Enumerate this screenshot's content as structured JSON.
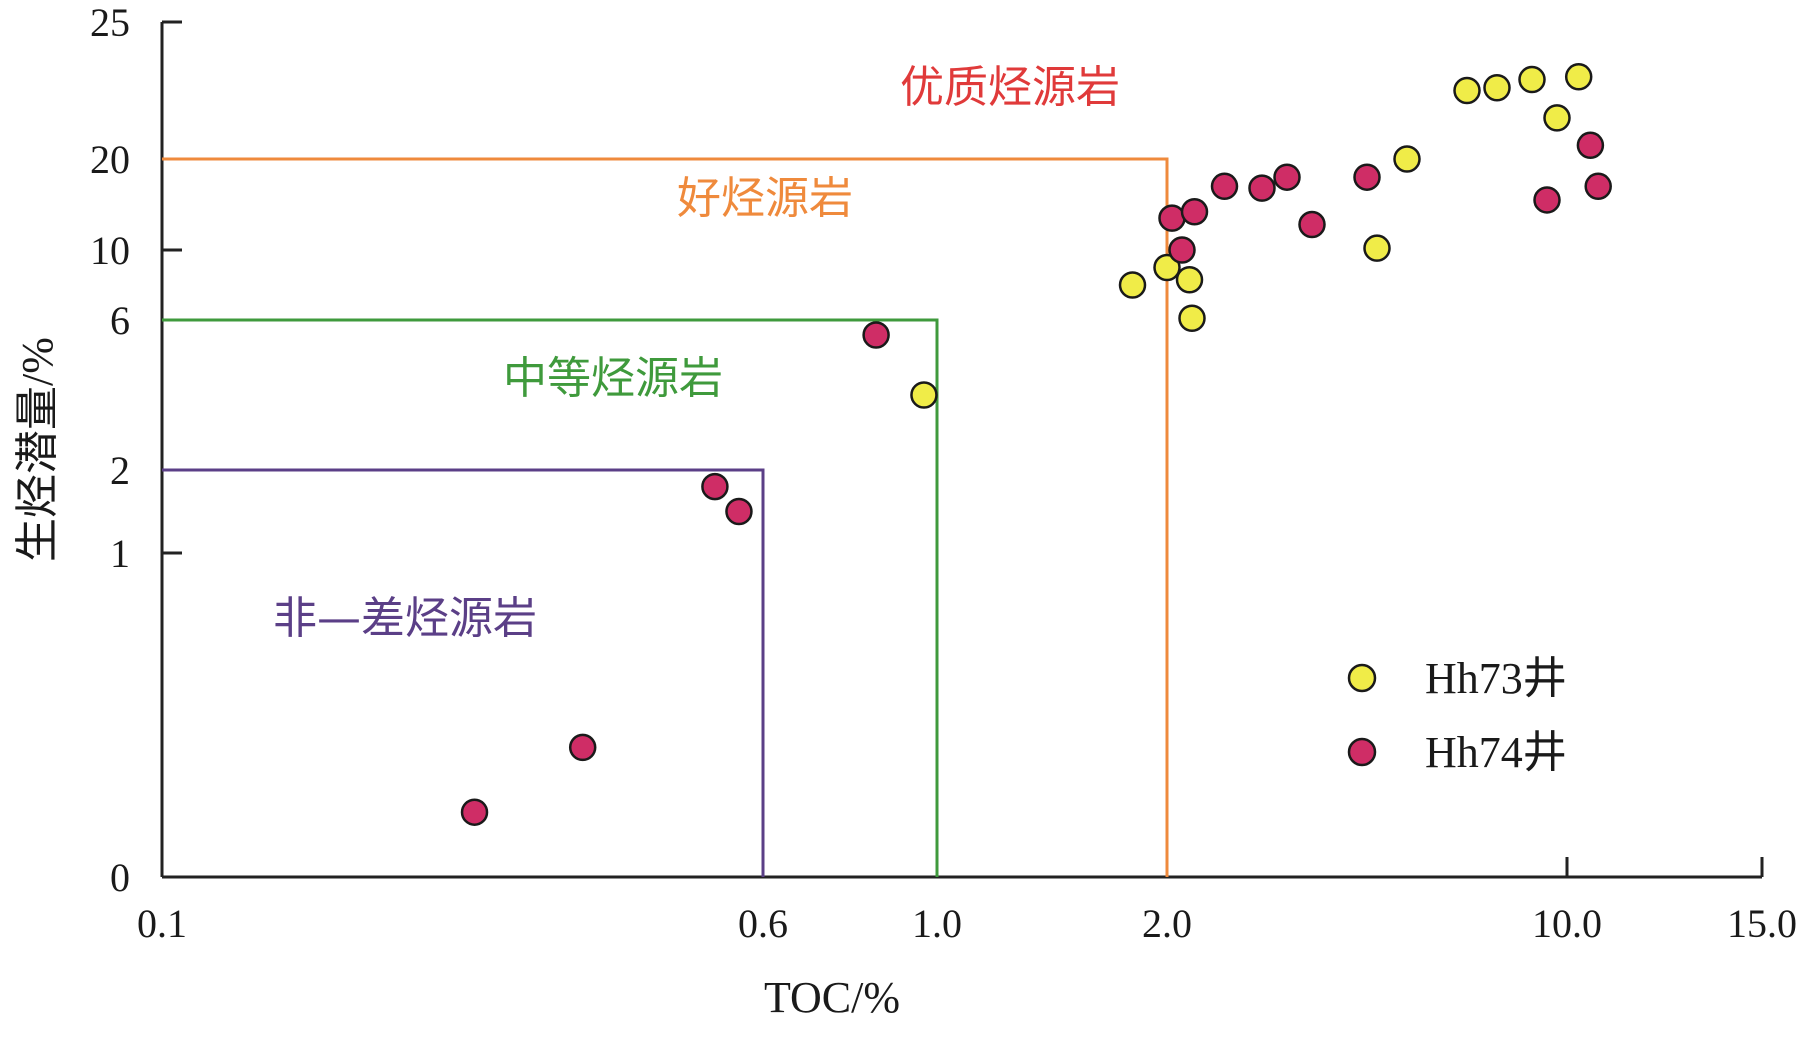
{
  "chart_data": {
    "type": "scatter",
    "xlabel": "TOC/%",
    "ylabel": "生烃潜量/%",
    "x_ticks": [
      "0.1",
      "0.6",
      "1.0",
      "2.0",
      "10.0",
      "15.0"
    ],
    "y_ticks": [
      "0",
      "1",
      "2",
      "6",
      "10",
      "20",
      "25"
    ],
    "xlim": [
      0.1,
      15.0
    ],
    "ylim": [
      0,
      25
    ],
    "legend_position": "bottom-right",
    "regions": [
      {
        "label": "非—差烃源岩",
        "toc_max": 0.6,
        "s_max": 2,
        "color": "#5b3f87"
      },
      {
        "label": "中等烃源岩",
        "toc_max": 1.0,
        "s_max": 6,
        "color": "#3f9a3c"
      },
      {
        "label": "好烃源岩",
        "toc_max": 2.0,
        "s_max": 20,
        "color": "#ef8a3c"
      },
      {
        "label": "优质烃源岩",
        "toc_max": null,
        "s_max": null,
        "color": "#e03a3a"
      }
    ],
    "series": [
      {
        "name": "Hh73井",
        "color": "#f0ec48",
        "points": [
          {
            "x": 0.97,
            "y": 4.0
          },
          {
            "x": 1.85,
            "y": 8.0
          },
          {
            "x": 2.0,
            "y": 9.0
          },
          {
            "x": 2.45,
            "y": 8.3
          },
          {
            "x": 2.5,
            "y": 6.1
          },
          {
            "x": 6.2,
            "y": 10.2
          },
          {
            "x": 6.8,
            "y": 20.0
          },
          {
            "x": 8.0,
            "y": 22.5
          },
          {
            "x": 8.6,
            "y": 22.6
          },
          {
            "x": 9.3,
            "y": 22.9
          },
          {
            "x": 9.8,
            "y": 21.5
          },
          {
            "x": 10.3,
            "y": 23.0
          }
        ]
      },
      {
        "name": "Hh74井",
        "color": "#cf2d66",
        "points": [
          {
            "x": 0.36,
            "y": 0.2
          },
          {
            "x": 0.45,
            "y": 0.4
          },
          {
            "x": 0.56,
            "y": 1.8
          },
          {
            "x": 0.58,
            "y": 1.5
          },
          {
            "x": 0.86,
            "y": 5.6
          },
          {
            "x": 2.1,
            "y": 13.5
          },
          {
            "x": 2.3,
            "y": 10.0
          },
          {
            "x": 2.55,
            "y": 14.2
          },
          {
            "x": 3.15,
            "y": 17.0
          },
          {
            "x": 3.9,
            "y": 16.8
          },
          {
            "x": 4.4,
            "y": 18.0
          },
          {
            "x": 4.9,
            "y": 12.8
          },
          {
            "x": 6.0,
            "y": 18.0
          },
          {
            "x": 9.6,
            "y": 15.5
          },
          {
            "x": 10.6,
            "y": 20.5
          },
          {
            "x": 10.8,
            "y": 17.0
          }
        ]
      }
    ]
  }
}
